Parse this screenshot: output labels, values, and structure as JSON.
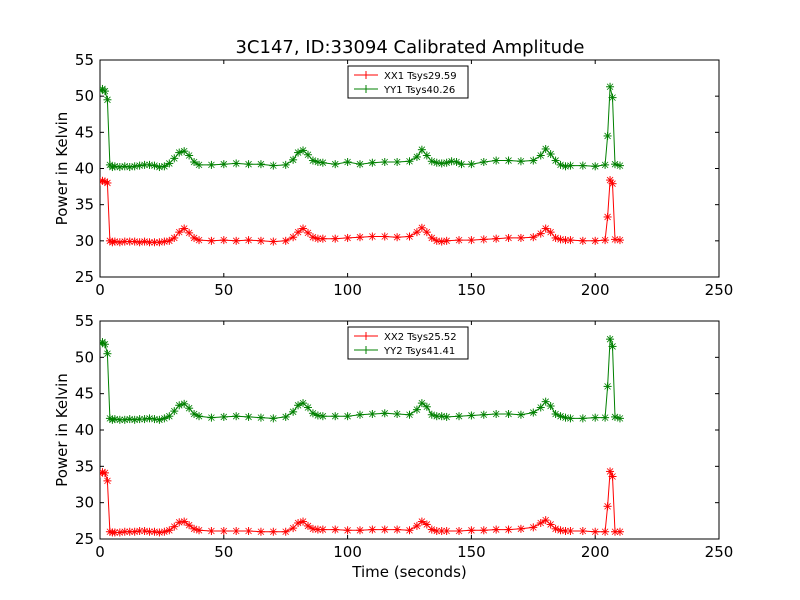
{
  "figure_title": "3C147, ID:33094 Calibrated Amplitude",
  "colors": {
    "XX": "#ff0000",
    "YY": "#008000"
  },
  "chart_data": [
    {
      "type": "line",
      "title": "3C147, ID:33094 Calibrated Amplitude",
      "xlabel": "",
      "ylabel": "Power in Kelvin",
      "xlim": [
        0,
        250
      ],
      "ylim": [
        25,
        55
      ],
      "xticks": [
        "0",
        "50",
        "100",
        "150",
        "200",
        "250"
      ],
      "yticks": [
        "25",
        "30",
        "35",
        "40",
        "45",
        "50",
        "55"
      ],
      "legend_position": "top-center",
      "series": [
        {
          "name": "XX1 Tsys29.59",
          "color": "#ff0000",
          "x": [
            0,
            1,
            2,
            3,
            4,
            5,
            6,
            8,
            10,
            12,
            14,
            16,
            18,
            20,
            22,
            24,
            26,
            28,
            30,
            32,
            34,
            36,
            38,
            40,
            45,
            50,
            55,
            60,
            65,
            70,
            75,
            78,
            80,
            82,
            84,
            86,
            88,
            90,
            95,
            100,
            105,
            110,
            115,
            120,
            125,
            128,
            130,
            132,
            134,
            136,
            138,
            140,
            145,
            150,
            155,
            160,
            165,
            170,
            175,
            178,
            180,
            182,
            184,
            186,
            188,
            190,
            195,
            200,
            204,
            205,
            206,
            207,
            208,
            210
          ],
          "y": [
            38.2,
            38.3,
            38.2,
            38.0,
            30.0,
            29.8,
            29.9,
            29.8,
            29.9,
            29.9,
            29.9,
            29.8,
            29.9,
            29.8,
            29.8,
            29.8,
            29.9,
            30.0,
            30.4,
            31.2,
            31.7,
            31.1,
            30.4,
            30.1,
            30.0,
            30.1,
            30.0,
            30.1,
            30.0,
            29.9,
            30.0,
            30.5,
            31.2,
            31.7,
            31.1,
            30.5,
            30.3,
            30.3,
            30.3,
            30.4,
            30.5,
            30.6,
            30.6,
            30.5,
            30.6,
            31.2,
            31.8,
            31.2,
            30.4,
            30.0,
            29.9,
            30.0,
            30.1,
            30.1,
            30.2,
            30.3,
            30.4,
            30.4,
            30.5,
            31.0,
            31.7,
            31.2,
            30.4,
            30.2,
            30.1,
            30.1,
            30.0,
            30.0,
            30.1,
            33.3,
            38.4,
            37.9,
            30.2,
            30.1
          ]
        },
        {
          "name": "YY1 Tsys40.26",
          "color": "#008000",
          "x": [
            0,
            1,
            2,
            3,
            4,
            5,
            6,
            8,
            10,
            12,
            14,
            16,
            18,
            20,
            22,
            24,
            26,
            28,
            30,
            32,
            34,
            36,
            38,
            40,
            45,
            50,
            55,
            60,
            65,
            70,
            75,
            78,
            80,
            82,
            84,
            86,
            88,
            90,
            95,
            100,
            105,
            110,
            115,
            120,
            125,
            128,
            130,
            132,
            134,
            136,
            138,
            140,
            142,
            144,
            146,
            150,
            155,
            160,
            165,
            170,
            175,
            178,
            180,
            182,
            184,
            186,
            188,
            190,
            195,
            200,
            204,
            205,
            206,
            207,
            208,
            210
          ],
          "y": [
            50.8,
            51.0,
            50.7,
            49.5,
            40.5,
            40.2,
            40.3,
            40.2,
            40.3,
            40.2,
            40.3,
            40.4,
            40.5,
            40.5,
            40.4,
            40.2,
            40.3,
            40.7,
            41.4,
            42.2,
            42.4,
            41.8,
            40.9,
            40.5,
            40.5,
            40.6,
            40.7,
            40.6,
            40.6,
            40.4,
            40.5,
            41.2,
            42.2,
            42.5,
            41.9,
            41.1,
            40.9,
            40.8,
            40.6,
            40.9,
            40.6,
            40.8,
            40.9,
            40.9,
            41.0,
            41.6,
            42.6,
            41.8,
            41.0,
            40.8,
            40.7,
            40.8,
            41.0,
            40.9,
            40.6,
            40.6,
            40.9,
            41.1,
            41.1,
            41.0,
            41.1,
            41.8,
            42.7,
            42.0,
            41.1,
            40.5,
            40.3,
            40.4,
            40.4,
            40.3,
            40.5,
            44.5,
            51.3,
            49.8,
            40.6,
            40.4
          ]
        }
      ]
    },
    {
      "type": "line",
      "title": "",
      "xlabel": "Time (seconds)",
      "ylabel": "Power in Kelvin",
      "xlim": [
        0,
        250
      ],
      "ylim": [
        25,
        55
      ],
      "xticks": [
        "0",
        "50",
        "100",
        "150",
        "200",
        "250"
      ],
      "yticks": [
        "25",
        "30",
        "35",
        "40",
        "45",
        "50",
        "55"
      ],
      "legend_position": "top-center",
      "series": [
        {
          "name": "XX2 Tsys25.52",
          "color": "#ff0000",
          "x": [
            0,
            1,
            2,
            3,
            4,
            5,
            6,
            8,
            10,
            12,
            14,
            16,
            18,
            20,
            22,
            24,
            26,
            28,
            30,
            32,
            34,
            36,
            38,
            40,
            45,
            50,
            55,
            60,
            65,
            70,
            75,
            78,
            80,
            82,
            84,
            86,
            88,
            90,
            95,
            100,
            105,
            110,
            115,
            120,
            125,
            128,
            130,
            132,
            134,
            136,
            138,
            140,
            145,
            150,
            155,
            160,
            165,
            170,
            175,
            178,
            180,
            182,
            184,
            186,
            188,
            190,
            195,
            200,
            204,
            205,
            206,
            207,
            208,
            210
          ],
          "y": [
            34.0,
            34.2,
            34.1,
            33.0,
            26.0,
            25.9,
            25.9,
            25.9,
            26.0,
            26.0,
            26.0,
            26.1,
            26.1,
            26.0,
            26.0,
            25.9,
            26.0,
            26.2,
            26.7,
            27.3,
            27.4,
            26.9,
            26.4,
            26.2,
            26.1,
            26.1,
            26.1,
            26.1,
            26.0,
            26.0,
            26.0,
            26.5,
            27.2,
            27.4,
            26.8,
            26.4,
            26.3,
            26.3,
            26.3,
            26.2,
            26.2,
            26.3,
            26.3,
            26.3,
            26.2,
            26.8,
            27.4,
            27.0,
            26.3,
            26.1,
            26.1,
            26.1,
            26.1,
            26.2,
            26.2,
            26.3,
            26.3,
            26.4,
            26.6,
            27.2,
            27.6,
            27.0,
            26.4,
            26.2,
            26.1,
            26.1,
            26.1,
            26.0,
            26.0,
            29.5,
            34.3,
            33.6,
            26.0,
            26.0
          ]
        },
        {
          "name": "YY2 Tsys41.41",
          "color": "#008000",
          "x": [
            0,
            1,
            2,
            3,
            4,
            5,
            6,
            8,
            10,
            12,
            14,
            16,
            18,
            20,
            22,
            24,
            26,
            28,
            30,
            32,
            34,
            36,
            38,
            40,
            45,
            50,
            55,
            60,
            65,
            70,
            75,
            78,
            80,
            82,
            84,
            86,
            88,
            90,
            95,
            100,
            105,
            110,
            115,
            120,
            125,
            128,
            130,
            132,
            134,
            136,
            138,
            140,
            145,
            150,
            155,
            160,
            165,
            170,
            175,
            178,
            180,
            182,
            184,
            186,
            188,
            190,
            195,
            200,
            204,
            205,
            206,
            207,
            208,
            210
          ],
          "y": [
            51.9,
            52.1,
            51.8,
            50.5,
            41.6,
            41.4,
            41.5,
            41.4,
            41.4,
            41.5,
            41.4,
            41.5,
            41.5,
            41.6,
            41.5,
            41.4,
            41.6,
            41.9,
            42.6,
            43.4,
            43.6,
            43.0,
            42.2,
            41.9,
            41.7,
            41.8,
            41.9,
            41.8,
            41.7,
            41.6,
            41.8,
            42.5,
            43.4,
            43.7,
            43.1,
            42.3,
            42.0,
            41.9,
            41.9,
            41.9,
            42.1,
            42.2,
            42.3,
            42.2,
            42.1,
            42.8,
            43.7,
            43.2,
            42.1,
            41.9,
            41.9,
            41.8,
            41.9,
            42.0,
            42.1,
            42.2,
            42.2,
            42.1,
            42.4,
            43.1,
            43.9,
            43.3,
            42.2,
            41.9,
            41.7,
            41.6,
            41.6,
            41.7,
            41.7,
            46.0,
            52.5,
            51.5,
            41.8,
            41.6
          ]
        }
      ]
    }
  ]
}
